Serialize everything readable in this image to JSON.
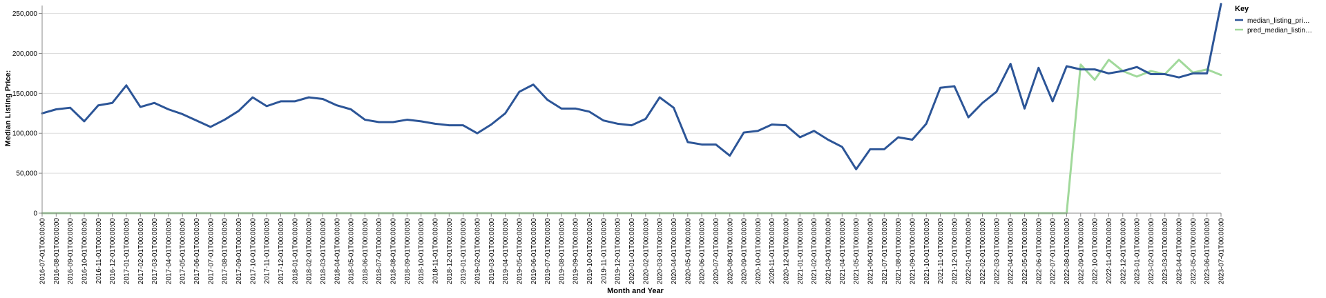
{
  "chart_data": {
    "type": "line",
    "xlabel": "Month and Year",
    "ylabel": "Median Listing Price:",
    "ylim": [
      0,
      260000
    ],
    "yticks": [
      0,
      50000,
      100000,
      150000,
      200000,
      250000
    ],
    "ytick_labels": [
      "0",
      "50,000",
      "100,000",
      "150,000",
      "200,000",
      "250,000"
    ],
    "grid": true,
    "legend": {
      "title": "Key",
      "placement": "top-right"
    },
    "x": [
      "2016-07-01T00:00:00",
      "2016-08-01T00:00:00",
      "2016-09-01T00:00:00",
      "2016-10-01T00:00:00",
      "2016-11-01T00:00:00",
      "2016-12-01T00:00:00",
      "2017-01-01T00:00:00",
      "2017-02-01T00:00:00",
      "2017-03-01T00:00:00",
      "2017-04-01T00:00:00",
      "2017-05-01T00:00:00",
      "2017-06-01T00:00:00",
      "2017-07-01T00:00:00",
      "2017-08-01T00:00:00",
      "2017-09-01T00:00:00",
      "2017-10-01T00:00:00",
      "2017-11-01T00:00:00",
      "2017-12-01T00:00:00",
      "2018-01-01T00:00:00",
      "2018-02-01T00:00:00",
      "2018-03-01T00:00:00",
      "2018-04-01T00:00:00",
      "2018-05-01T00:00:00",
      "2018-06-01T00:00:00",
      "2018-07-01T00:00:00",
      "2018-08-01T00:00:00",
      "2018-09-01T00:00:00",
      "2018-10-01T00:00:00",
      "2018-11-01T00:00:00",
      "2018-12-01T00:00:00",
      "2019-01-01T00:00:00",
      "2019-02-01T00:00:00",
      "2019-03-01T00:00:00",
      "2019-04-01T00:00:00",
      "2019-05-01T00:00:00",
      "2019-06-01T00:00:00",
      "2019-07-01T00:00:00",
      "2019-08-01T00:00:00",
      "2019-09-01T00:00:00",
      "2019-10-01T00:00:00",
      "2019-11-01T00:00:00",
      "2019-12-01T00:00:00",
      "2020-01-01T00:00:00",
      "2020-02-01T00:00:00",
      "2020-03-01T00:00:00",
      "2020-04-01T00:00:00",
      "2020-05-01T00:00:00",
      "2020-06-01T00:00:00",
      "2020-07-01T00:00:00",
      "2020-08-01T00:00:00",
      "2020-09-01T00:00:00",
      "2020-10-01T00:00:00",
      "2020-11-01T00:00:00",
      "2020-12-01T00:00:00",
      "2021-01-01T00:00:00",
      "2021-02-01T00:00:00",
      "2021-03-01T00:00:00",
      "2021-04-01T00:00:00",
      "2021-05-01T00:00:00",
      "2021-06-01T00:00:00",
      "2021-07-01T00:00:00",
      "2021-08-01T00:00:00",
      "2021-09-01T00:00:00",
      "2021-10-01T00:00:00",
      "2021-11-01T00:00:00",
      "2021-12-01T00:00:00",
      "2022-01-01T00:00:00",
      "2022-02-01T00:00:00",
      "2022-03-01T00:00:00",
      "2022-04-01T00:00:00",
      "2022-05-01T00:00:00",
      "2022-06-01T00:00:00",
      "2022-07-01T00:00:00",
      "2022-08-01T00:00:00",
      "2022-09-01T00:00:00",
      "2022-10-01T00:00:00",
      "2022-11-01T00:00:00",
      "2022-12-01T00:00:00",
      "2023-01-01T00:00:00",
      "2023-02-01T00:00:00",
      "2023-03-01T00:00:00",
      "2023-04-01T00:00:00",
      "2023-05-01T00:00:00",
      "2023-06-01T00:00:00",
      "2023-07-01T00:00:00"
    ],
    "series": [
      {
        "name": "median_listing_pri…",
        "color": "#2c5597",
        "values": [
          125000,
          130000,
          132000,
          115000,
          135000,
          138000,
          160000,
          133000,
          138000,
          130000,
          124000,
          116000,
          108000,
          117000,
          128000,
          145000,
          134000,
          140000,
          140000,
          145000,
          143000,
          135000,
          130000,
          117000,
          114000,
          114000,
          117000,
          115000,
          112000,
          110000,
          110000,
          100000,
          111000,
          125000,
          152000,
          161000,
          142000,
          131000,
          131000,
          127000,
          116000,
          112000,
          110000,
          118000,
          145000,
          132000,
          89000,
          86000,
          86000,
          72000,
          101000,
          103000,
          111000,
          110000,
          95000,
          103000,
          92000,
          83000,
          55000,
          80000,
          80000,
          95000,
          92000,
          112000,
          157000,
          159000,
          120000,
          138000,
          152000,
          187000,
          131000,
          182000,
          140000,
          184000,
          180000,
          180000,
          175000,
          178000,
          183000,
          174000,
          174000,
          170000,
          175000,
          175000,
          262000
        ]
      },
      {
        "name": "pred_median_listin…",
        "color": "#a1d99b",
        "values": [
          0,
          0,
          0,
          0,
          0,
          0,
          0,
          0,
          0,
          0,
          0,
          0,
          0,
          0,
          0,
          0,
          0,
          0,
          0,
          0,
          0,
          0,
          0,
          0,
          0,
          0,
          0,
          0,
          0,
          0,
          0,
          0,
          0,
          0,
          0,
          0,
          0,
          0,
          0,
          0,
          0,
          0,
          0,
          0,
          0,
          0,
          0,
          0,
          0,
          0,
          0,
          0,
          0,
          0,
          0,
          0,
          0,
          0,
          0,
          0,
          0,
          0,
          0,
          0,
          0,
          0,
          0,
          0,
          0,
          0,
          0,
          0,
          0,
          0,
          186000,
          167000,
          192000,
          178000,
          171000,
          178000,
          174000,
          192000,
          176000,
          180000,
          173000
        ]
      }
    ]
  }
}
